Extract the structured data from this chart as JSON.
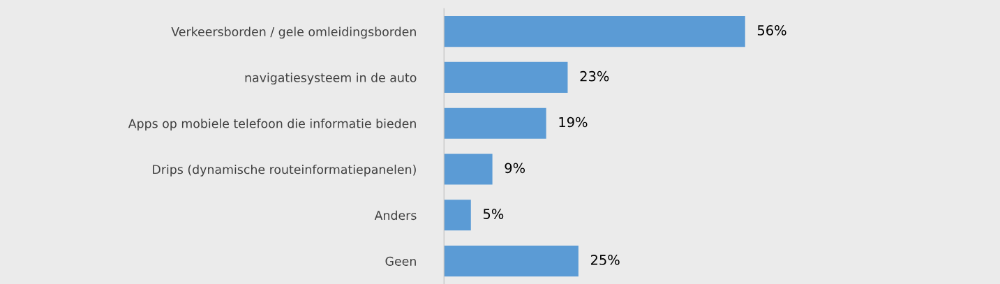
{
  "chart_data": {
    "type": "bar",
    "orientation": "horizontal",
    "data_labels": true,
    "categories": [
      "Verkeersborden / gele omleidingsborden",
      "navigatiesysteem in de auto",
      "Apps op mobiele telefoon die informatie bieden",
      "Drips (dynamische routeinformatiepanelen)",
      "Anders",
      "Geen"
    ],
    "values": [
      56,
      23,
      19,
      9,
      5,
      25
    ],
    "value_labels": [
      "56%",
      "23%",
      "19%",
      "9%",
      "5%",
      "25%"
    ],
    "color": "#5b9bd5",
    "grid": false,
    "legend": false
  }
}
